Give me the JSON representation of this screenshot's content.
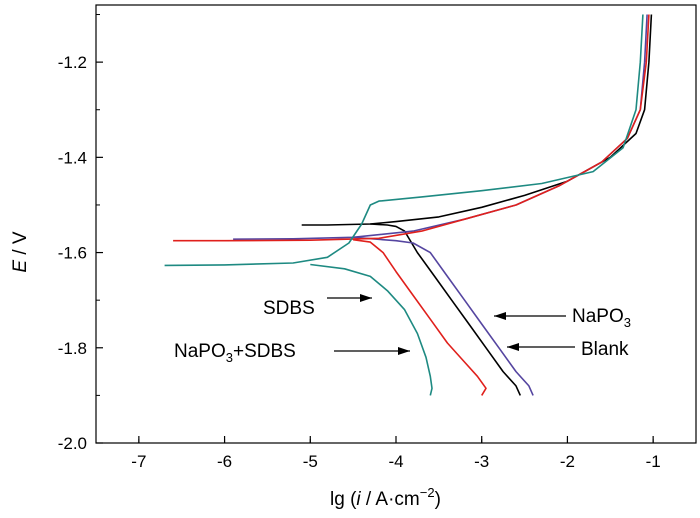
{
  "chart_data": {
    "type": "line",
    "title": "",
    "xlabel": {
      "prefix": "lg (",
      "italic": "i",
      "mid": " / A·cm",
      "sup": "−2",
      "suffix": ")"
    },
    "ylabel": {
      "italic": "E",
      "suffix": " / V"
    },
    "xlim": [
      -7.5,
      -0.5
    ],
    "ylim": [
      -2.0,
      -1.08
    ],
    "x_ticks": [
      -7,
      -6,
      -5,
      -4,
      -3,
      -2,
      -1
    ],
    "x_tick_labels": [
      "-7",
      "-6",
      "-5",
      "-4",
      "-3",
      "-2",
      "-1"
    ],
    "y_ticks": [
      -1.2,
      -1.4,
      -1.6,
      -1.8,
      -2.0
    ],
    "y_tick_labels": [
      "-1.2",
      "-1.4",
      "-1.6",
      "-1.8",
      "-2.0"
    ],
    "grid": false,
    "series": [
      {
        "name": "Blank",
        "color": "#000000",
        "points": [
          [
            -1.02,
            -1.1
          ],
          [
            -1.05,
            -1.2
          ],
          [
            -1.1,
            -1.3
          ],
          [
            -1.2,
            -1.35
          ],
          [
            -1.5,
            -1.4
          ],
          [
            -2.0,
            -1.45
          ],
          [
            -2.5,
            -1.48
          ],
          [
            -3.0,
            -1.505
          ],
          [
            -3.5,
            -1.525
          ],
          [
            -4.0,
            -1.535
          ],
          [
            -4.3,
            -1.54
          ],
          [
            -4.8,
            -1.542
          ],
          [
            -5.1,
            -1.542
          ]
        ],
        "cathodic": [
          [
            -4.3,
            -1.54
          ],
          [
            -4.1,
            -1.542
          ],
          [
            -4.0,
            -1.545
          ],
          [
            -3.9,
            -1.555
          ],
          [
            -3.75,
            -1.6
          ],
          [
            -3.55,
            -1.65
          ],
          [
            -3.35,
            -1.7
          ],
          [
            -3.15,
            -1.75
          ],
          [
            -2.95,
            -1.8
          ],
          [
            -2.75,
            -1.85
          ],
          [
            -2.6,
            -1.88
          ],
          [
            -2.55,
            -1.9
          ]
        ]
      },
      {
        "name": "NaPO₃",
        "color": "#5545a0",
        "points": [
          [
            -1.07,
            -1.1
          ],
          [
            -1.1,
            -1.2
          ],
          [
            -1.15,
            -1.3
          ],
          [
            -1.3,
            -1.36
          ],
          [
            -1.6,
            -1.41
          ],
          [
            -2.1,
            -1.46
          ],
          [
            -2.6,
            -1.5
          ],
          [
            -3.2,
            -1.53
          ],
          [
            -3.8,
            -1.555
          ],
          [
            -4.5,
            -1.568
          ],
          [
            -5.2,
            -1.571
          ],
          [
            -5.9,
            -1.572
          ]
        ],
        "cathodic": [
          [
            -4.5,
            -1.568
          ],
          [
            -4.0,
            -1.575
          ],
          [
            -3.8,
            -1.58
          ],
          [
            -3.6,
            -1.6
          ],
          [
            -3.4,
            -1.65
          ],
          [
            -3.2,
            -1.7
          ],
          [
            -3.0,
            -1.75
          ],
          [
            -2.8,
            -1.8
          ],
          [
            -2.6,
            -1.85
          ],
          [
            -2.45,
            -1.88
          ],
          [
            -2.4,
            -1.9
          ]
        ]
      },
      {
        "name": "SDBS",
        "color": "#e0201c",
        "points": [
          [
            -1.05,
            -1.1
          ],
          [
            -1.08,
            -1.2
          ],
          [
            -1.15,
            -1.3
          ],
          [
            -1.3,
            -1.36
          ],
          [
            -1.6,
            -1.41
          ],
          [
            -2.1,
            -1.46
          ],
          [
            -2.6,
            -1.5
          ],
          [
            -3.2,
            -1.53
          ],
          [
            -3.7,
            -1.555
          ],
          [
            -4.2,
            -1.57
          ],
          [
            -5.0,
            -1.574
          ],
          [
            -6.0,
            -1.575
          ],
          [
            -6.6,
            -1.575
          ]
        ],
        "cathodic": [
          [
            -4.5,
            -1.573
          ],
          [
            -4.3,
            -1.578
          ],
          [
            -4.15,
            -1.6
          ],
          [
            -4.0,
            -1.64
          ],
          [
            -3.8,
            -1.69
          ],
          [
            -3.6,
            -1.74
          ],
          [
            -3.4,
            -1.79
          ],
          [
            -3.2,
            -1.83
          ],
          [
            -3.05,
            -1.86
          ],
          [
            -2.95,
            -1.885
          ],
          [
            -3.0,
            -1.9
          ]
        ]
      },
      {
        "name": "NaPO₃+SDBS",
        "color": "#1e8a82",
        "points": [
          [
            -1.12,
            -1.1
          ],
          [
            -1.15,
            -1.2
          ],
          [
            -1.2,
            -1.3
          ],
          [
            -1.35,
            -1.38
          ],
          [
            -1.7,
            -1.43
          ],
          [
            -2.3,
            -1.455
          ],
          [
            -3.0,
            -1.47
          ],
          [
            -3.7,
            -1.483
          ],
          [
            -4.2,
            -1.492
          ],
          [
            -4.3,
            -1.5
          ],
          [
            -4.4,
            -1.54
          ],
          [
            -4.55,
            -1.58
          ],
          [
            -4.8,
            -1.61
          ],
          [
            -5.2,
            -1.622
          ],
          [
            -6.0,
            -1.626
          ],
          [
            -6.7,
            -1.627
          ]
        ],
        "cathodic": [
          [
            -5.0,
            -1.625
          ],
          [
            -4.6,
            -1.634
          ],
          [
            -4.3,
            -1.65
          ],
          [
            -4.1,
            -1.68
          ],
          [
            -3.9,
            -1.72
          ],
          [
            -3.75,
            -1.77
          ],
          [
            -3.65,
            -1.82
          ],
          [
            -3.6,
            -1.86
          ],
          [
            -3.58,
            -1.885
          ],
          [
            -3.6,
            -1.9
          ]
        ]
      }
    ],
    "annotations": [
      {
        "text": "SDBS",
        "arrow_to": [
          -3.95,
          -1.685
        ]
      },
      {
        "text_base": "NaPO",
        "text_sub": "3",
        "text_rest": "+SDBS",
        "arrow_to": [
          -3.65,
          -1.82
        ]
      },
      {
        "text_base": "NaPO",
        "text_sub": "3",
        "text_rest": "",
        "arrow_to": [
          -2.8,
          -1.725
        ]
      },
      {
        "text": "Blank",
        "arrow_to": [
          -2.7,
          -1.79
        ]
      }
    ]
  }
}
